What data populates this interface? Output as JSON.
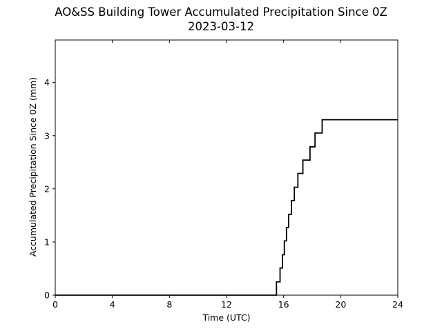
{
  "chart_data": {
    "type": "line",
    "step": true,
    "title": "AO&SS Building Tower Accumulated Precipitation Since 0Z",
    "subtitle": "2023-03-12",
    "xlabel": "Time (UTC)",
    "ylabel": "Accumulated Precipitation Since 0Z (mm)",
    "xlim": [
      0,
      24
    ],
    "ylim": [
      0,
      4.8
    ],
    "xticks": [
      0,
      4,
      8,
      12,
      16,
      20,
      24
    ],
    "yticks": [
      0,
      1,
      2,
      3,
      4
    ],
    "grid": false,
    "line_color": "#000000",
    "series": [
      {
        "x": [
          0,
          15.5,
          15.75,
          15.92,
          16.05,
          16.2,
          16.35,
          16.55,
          16.75,
          17.0,
          17.35,
          17.85,
          18.2,
          18.7,
          24
        ],
        "y": [
          0,
          0.25,
          0.51,
          0.76,
          1.02,
          1.27,
          1.52,
          1.78,
          2.03,
          2.29,
          2.54,
          2.79,
          3.05,
          3.3,
          3.3
        ]
      }
    ]
  }
}
